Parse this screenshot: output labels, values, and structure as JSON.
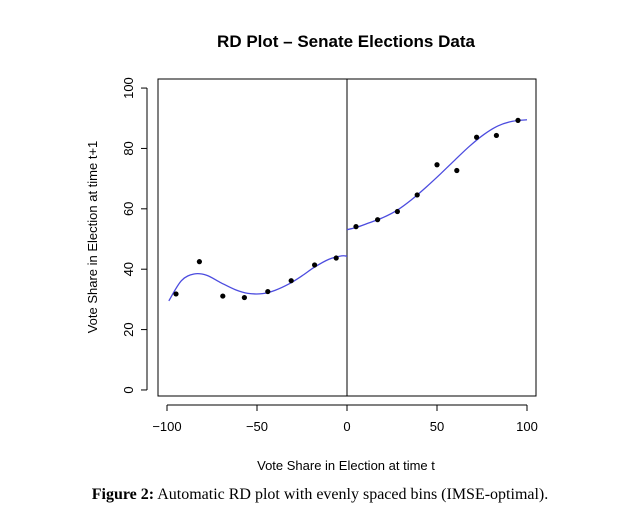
{
  "chart_data": {
    "type": "scatter",
    "title": "RD Plot – Senate Elections Data",
    "xlabel": "Vote Share in Election at time t",
    "ylabel": "Vote Share in Election at time t+1",
    "xlim": [
      -105,
      105
    ],
    "ylim": [
      -2,
      103
    ],
    "xticks": [
      "-100",
      "-50",
      "0",
      "50",
      "100"
    ],
    "yticks": [
      "0",
      "20",
      "40",
      "60",
      "80",
      "100"
    ],
    "cutoff": 0,
    "colors": {
      "points": "#000000",
      "fit": "#4c4cdf",
      "axes": "#000000"
    },
    "series": [
      {
        "type": "scatter",
        "x": [
          -95,
          -82,
          -69,
          -57,
          -44,
          -31,
          -18,
          -6,
          5,
          17,
          28,
          39,
          50,
          61,
          72,
          83,
          95
        ],
        "y": [
          31.8,
          42.5,
          31.1,
          30.6,
          32.6,
          36.2,
          41.4,
          43.7,
          54.1,
          56.4,
          59.1,
          64.6,
          74.6,
          72.7,
          83.7,
          84.3,
          89.3
        ]
      },
      {
        "type": "line",
        "x": [
          -99,
          -92,
          -85,
          -78,
          -70,
          -62,
          -55,
          -47,
          -40,
          -32,
          -25,
          -18,
          -10,
          -3,
          0
        ],
        "y": [
          29.5,
          36.2,
          38.4,
          38.0,
          35.5,
          33.2,
          32.0,
          31.9,
          33.0,
          35.2,
          37.8,
          40.7,
          43.3,
          44.4,
          44.3
        ]
      },
      {
        "type": "line",
        "x": [
          0,
          5,
          12,
          20,
          28,
          36,
          44,
          52,
          60,
          68,
          76,
          84,
          92,
          100
        ],
        "y": [
          53.1,
          53.8,
          55.3,
          57.1,
          59.6,
          63.1,
          67.2,
          71.6,
          76.2,
          80.7,
          84.6,
          87.5,
          89.0,
          89.5
        ]
      }
    ]
  },
  "caption": {
    "label": "Figure 2:",
    "text": " Automatic RD plot with evenly spaced bins (IMSE-optimal)."
  }
}
